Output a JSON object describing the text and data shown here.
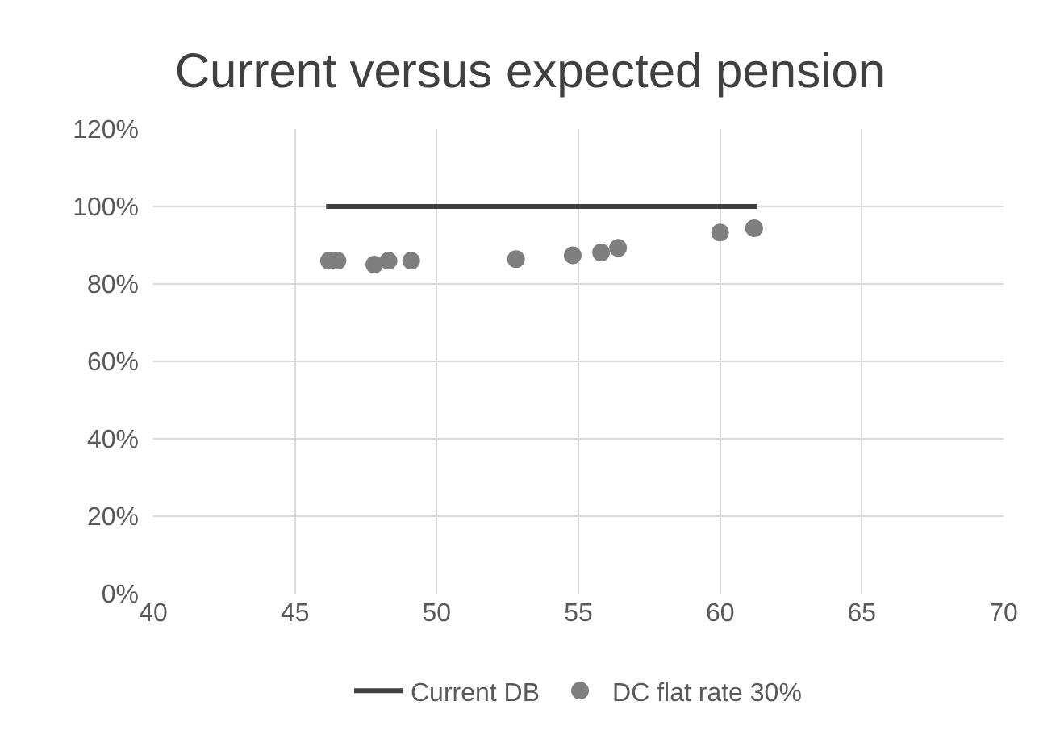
{
  "chart_data": {
    "type": "scatter",
    "title": "Current versus expected pension",
    "series": [
      {
        "name": "Current DB",
        "type": "line",
        "color": "#404040",
        "x": [
          46.1,
          61.3
        ],
        "values": [
          100,
          100
        ],
        "marker": "none"
      },
      {
        "name": "DC flat rate 30%",
        "color": "#7f7f7f",
        "x": [
          46.2,
          46.5,
          47.8,
          48.3,
          49.1,
          52.8,
          54.8,
          55.8,
          56.4,
          60,
          61.2
        ],
        "values": [
          86,
          86,
          85,
          86,
          86,
          86.4,
          87.4,
          88.1,
          89.3,
          93.3,
          94.4
        ],
        "marker": "circle"
      }
    ],
    "xlim": [
      40,
      70
    ],
    "xticks": [
      40,
      45,
      50,
      55,
      60,
      65,
      70
    ],
    "ylim": [
      0,
      120
    ],
    "yticks": [
      {
        "value": 0,
        "label": "0%"
      },
      {
        "value": 20,
        "label": "20%"
      },
      {
        "value": 40,
        "label": "40%"
      },
      {
        "value": 60,
        "label": "60%"
      },
      {
        "value": 80,
        "label": "80%"
      },
      {
        "value": 100,
        "label": "100%"
      },
      {
        "value": 120,
        "label": "120%"
      }
    ],
    "grid": true,
    "legend": "bottom"
  }
}
